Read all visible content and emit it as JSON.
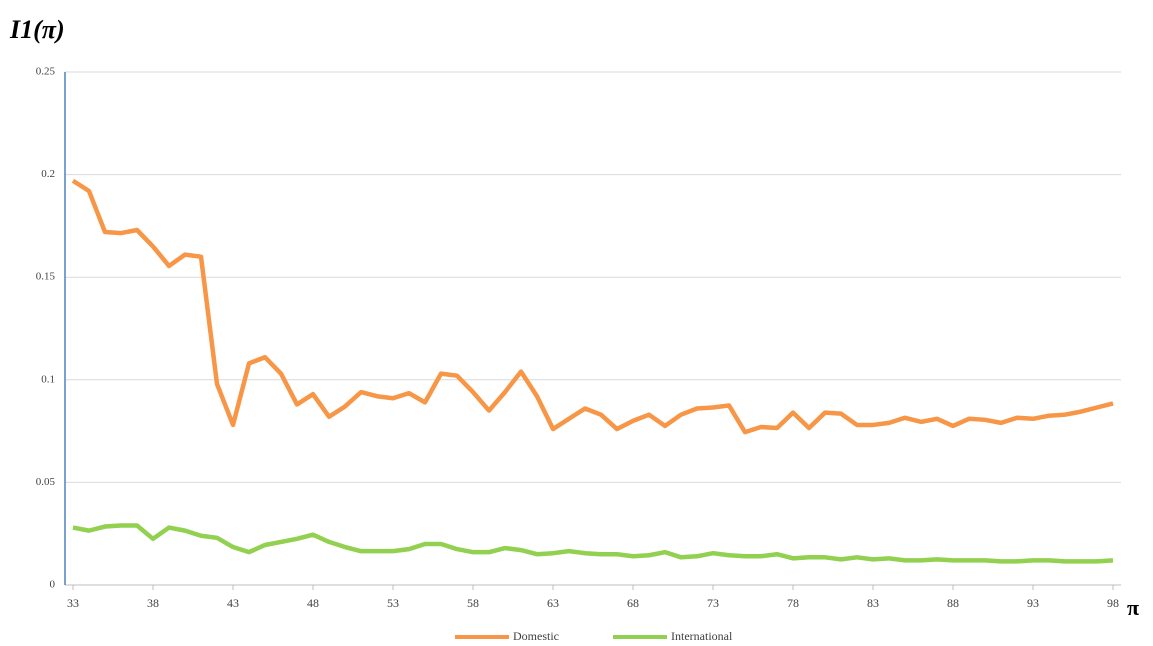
{
  "chart_data": {
    "type": "line",
    "ylabel": "I1(π)",
    "xlabel": "π",
    "x": [
      33,
      34,
      35,
      36,
      37,
      38,
      39,
      40,
      41,
      42,
      43,
      44,
      45,
      46,
      47,
      48,
      49,
      50,
      51,
      52,
      53,
      54,
      55,
      56,
      57,
      58,
      59,
      60,
      61,
      62,
      63,
      64,
      65,
      66,
      67,
      68,
      69,
      70,
      71,
      72,
      73,
      74,
      75,
      76,
      77,
      78,
      79,
      80,
      81,
      82,
      83,
      84,
      85,
      86,
      87,
      88,
      89,
      90,
      91,
      92,
      93,
      94,
      95,
      96,
      97,
      98
    ],
    "series": [
      {
        "name": "Domestic",
        "color": "#f79646",
        "values": [
          0.197,
          0.192,
          0.172,
          0.1715,
          0.173,
          0.165,
          0.1555,
          0.161,
          0.16,
          0.098,
          0.078,
          0.108,
          0.111,
          0.103,
          0.088,
          0.093,
          0.082,
          0.087,
          0.094,
          0.092,
          0.091,
          0.0935,
          0.089,
          0.103,
          0.102,
          0.094,
          0.085,
          0.094,
          0.104,
          0.092,
          0.076,
          0.081,
          0.086,
          0.083,
          0.076,
          0.08,
          0.083,
          0.0775,
          0.083,
          0.086,
          0.0865,
          0.0875,
          0.0745,
          0.077,
          0.0765,
          0.084,
          0.0765,
          0.084,
          0.0835,
          0.078,
          0.078,
          0.079,
          0.0815,
          0.0795,
          0.081,
          0.0775,
          0.081,
          0.0805,
          0.079,
          0.0815,
          0.081,
          0.0825,
          0.083,
          0.0845,
          0.0865,
          0.0885
        ]
      },
      {
        "name": "International",
        "color": "#92d050",
        "values": [
          0.028,
          0.0265,
          0.0285,
          0.029,
          0.029,
          0.0225,
          0.028,
          0.0265,
          0.024,
          0.023,
          0.0185,
          0.016,
          0.0195,
          0.021,
          0.0225,
          0.0245,
          0.021,
          0.0185,
          0.0165,
          0.0165,
          0.0165,
          0.0175,
          0.02,
          0.02,
          0.0175,
          0.016,
          0.016,
          0.018,
          0.017,
          0.015,
          0.0155,
          0.0165,
          0.0155,
          0.015,
          0.015,
          0.014,
          0.0145,
          0.016,
          0.0135,
          0.014,
          0.0155,
          0.0145,
          0.014,
          0.014,
          0.015,
          0.013,
          0.0135,
          0.0135,
          0.0125,
          0.0135,
          0.0125,
          0.013,
          0.012,
          0.012,
          0.0125,
          0.012,
          0.012,
          0.012,
          0.0115,
          0.0115,
          0.012,
          0.012,
          0.0115,
          0.0115,
          0.0115,
          0.012
        ]
      }
    ],
    "xlim": [
      32.5,
      98.5
    ],
    "xticks": [
      33,
      38,
      43,
      48,
      53,
      58,
      63,
      68,
      73,
      78,
      83,
      88,
      93,
      98
    ],
    "ylim": [
      0,
      0.25
    ],
    "yticks": [
      0,
      0.05,
      0.1,
      0.15,
      0.2,
      0.25
    ],
    "grid": true,
    "legend": "bottom"
  }
}
